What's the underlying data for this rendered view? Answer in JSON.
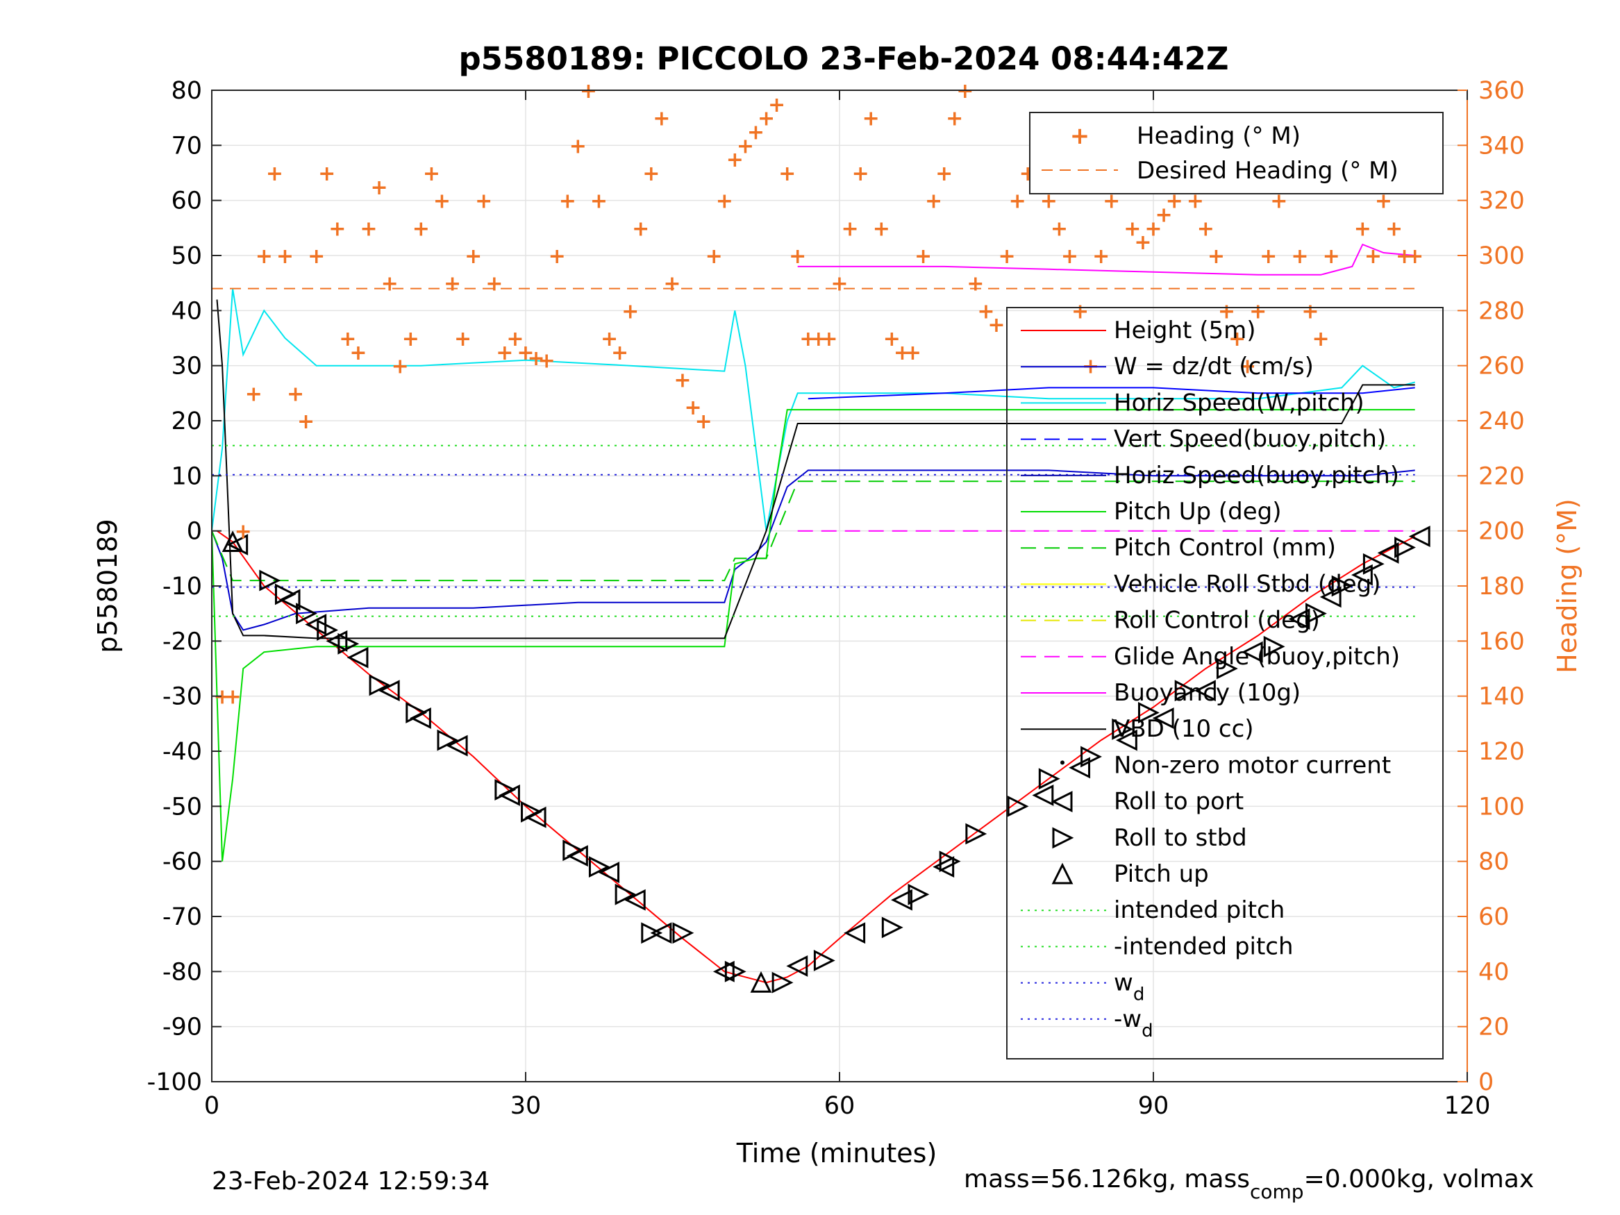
{
  "chart_data": {
    "type": "line",
    "title": "p5580189: PICCOLO 23-Feb-2024 08:44:42Z",
    "xlabel": "Time (minutes)",
    "ylabel": "p5580189",
    "y2label": "Heading (°M)",
    "xlim": [
      0,
      120
    ],
    "ylim": [
      -100,
      80
    ],
    "y2lim": [
      0,
      360
    ],
    "xticks": [
      "0",
      "30",
      "60",
      "90",
      "120"
    ],
    "yticks": [
      "-100",
      "-90",
      "-80",
      "-70",
      "-60",
      "-50",
      "-40",
      "-30",
      "-20",
      "-10",
      "0",
      "10",
      "20",
      "30",
      "40",
      "50",
      "60",
      "70",
      "80"
    ],
    "y2ticks": [
      "0",
      "20",
      "40",
      "60",
      "80",
      "100",
      "120",
      "140",
      "160",
      "180",
      "200",
      "220",
      "240",
      "260",
      "280",
      "300",
      "320",
      "340",
      "360"
    ],
    "grid": true,
    "footer_left": "23-Feb-2024 12:59:34",
    "footer_right_parts": [
      "mass=56.126kg, mass",
      "comp",
      "=0.000kg, volmax"
    ],
    "legend_top": {
      "placement": "top-right",
      "entries": [
        "Heading (° M)",
        "Desired Heading (° M)"
      ]
    },
    "legend_main": {
      "placement": "right",
      "entries": [
        {
          "label": "Height (5m)"
        },
        {
          "label": "W = dz/dt (cm/s)"
        },
        {
          "label": "Horiz Speed(W,pitch)"
        },
        {
          "label": "Vert Speed(buoy,pitch)"
        },
        {
          "label": "Horiz Speed(buoy,pitch)"
        },
        {
          "label": "Pitch Up (deg)"
        },
        {
          "label": "Pitch Control (mm)"
        },
        {
          "label": "Vehicle Roll Stbd (deg)"
        },
        {
          "label": "Roll Control (deg)"
        },
        {
          "label": "Glide Angle (buoy,pitch)"
        },
        {
          "label": "Buoyancy (10g)"
        },
        {
          "label": "VBD (10 cc)"
        },
        {
          "label": "Non-zero motor current"
        },
        {
          "label": "Roll to port"
        },
        {
          "label": "Roll to stbd"
        },
        {
          "label": "Pitch up"
        },
        {
          "label": "intended pitch"
        },
        {
          "label": "-intended pitch"
        },
        {
          "label": "w",
          "sub": "d"
        },
        {
          "label": "-w",
          "sub": "d"
        }
      ]
    },
    "colors": {
      "height": "#ff0000",
      "w": "#0000cc",
      "horiz_speed_w": "#00e5ee",
      "vert_speed_buoy": "#0000ff",
      "horiz_speed_buoy": "#0000aa",
      "pitch_up": "#00dd00",
      "pitch_control": "#00cc00",
      "roll": "#ffff00",
      "roll_control": "#e6e600",
      "glide": "#ff00ff",
      "buoyancy": "#ff00ff",
      "vbd": "#000000",
      "heading": "#f07323",
      "intended": "#22dd22",
      "wd": "#2222dd"
    },
    "series": [
      {
        "name": "Height (5m)",
        "x": [
          0.5,
          2,
          5,
          10,
          15,
          20,
          25,
          30,
          35,
          40,
          45,
          49,
          51,
          53,
          55,
          57,
          60,
          65,
          70,
          75,
          80,
          85,
          90,
          95,
          100,
          105,
          110,
          115
        ],
        "y": [
          0,
          -2,
          -10,
          -18,
          -26,
          -33,
          -41,
          -50,
          -58,
          -66,
          -74,
          -80,
          -81,
          -82,
          -81,
          -79,
          -74,
          -66,
          -59,
          -52,
          -45,
          -38,
          -32,
          -25,
          -19,
          -12,
          -6,
          -1
        ]
      },
      {
        "name": "W = dz/dt (cm/s)",
        "x": [
          0,
          1,
          2,
          3,
          5,
          8,
          15,
          25,
          35,
          45,
          49,
          50,
          52,
          53,
          55,
          57,
          60,
          70,
          80,
          90,
          100,
          110,
          115
        ],
        "y": [
          0,
          -5,
          -15,
          -18,
          -17,
          -15,
          -14,
          -14,
          -13,
          -13,
          -13,
          -7,
          -4,
          -2,
          8,
          11,
          11,
          11,
          11,
          10,
          10,
          10,
          11
        ]
      },
      {
        "name": "Horiz Speed(W,pitch)",
        "x": [
          0,
          1,
          2,
          3,
          5,
          7,
          10,
          20,
          30,
          40,
          49,
          50,
          51,
          52,
          53,
          55,
          56,
          60,
          70,
          80,
          90,
          100,
          108,
          110,
          113,
          115
        ],
        "y": [
          0,
          15,
          44,
          32,
          40,
          35,
          30,
          30,
          31,
          30,
          29,
          40,
          30,
          15,
          0,
          20,
          25,
          25,
          25,
          24,
          24,
          24,
          26,
          30,
          26,
          27
        ]
      },
      {
        "name": "Vert Speed(buoy,pitch)",
        "x": [
          57,
          70,
          80,
          90,
          100,
          110,
          115
        ],
        "y": [
          24,
          25,
          26,
          26,
          25,
          25,
          26
        ]
      },
      {
        "name": "Pitch Up (deg)",
        "x": [
          0,
          1,
          2,
          3,
          5,
          10,
          20,
          30,
          40,
          49,
          50,
          52,
          53,
          54,
          55,
          57,
          60,
          70,
          80,
          90,
          100,
          110,
          115
        ],
        "y": [
          0,
          -60,
          -45,
          -25,
          -22,
          -21,
          -21,
          -21,
          -21,
          -21,
          -6,
          -5,
          -5,
          10,
          22,
          22,
          22,
          22,
          22,
          22,
          22,
          22,
          22
        ]
      },
      {
        "name": "Pitch Control (mm)",
        "x": [
          0,
          2,
          49,
          50,
          53,
          56,
          70,
          80,
          90,
          100,
          115
        ],
        "y": [
          0,
          -9,
          -9,
          -5,
          -5,
          9,
          9,
          9,
          9,
          9,
          9
        ]
      },
      {
        "name": "Glide Angle (buoy,pitch)",
        "x": [
          56,
          115
        ],
        "y": [
          0,
          0
        ]
      },
      {
        "name": "Buoyancy (10g)",
        "x": [
          56,
          70,
          80,
          90,
          100,
          106,
          109,
          110,
          112,
          115
        ],
        "y": [
          48,
          48,
          47.5,
          47,
          46.5,
          46.5,
          48,
          52,
          50.5,
          50
        ]
      },
      {
        "name": "VBD (10 cc)",
        "x": [
          0.5,
          1,
          2,
          3,
          5,
          10,
          20,
          30,
          40,
          49,
          53,
          56,
          70,
          80,
          90,
          100,
          108,
          110,
          115
        ],
        "y": [
          42,
          30,
          -15,
          -19,
          -19,
          -19.5,
          -19.5,
          -19.5,
          -19.5,
          -19.5,
          0,
          19.5,
          19.5,
          19.5,
          19.5,
          19.5,
          19.5,
          26.5,
          26.5
        ]
      },
      {
        "name": "intended pitch",
        "x": [
          0,
          115
        ],
        "y": [
          15.5,
          15.5
        ]
      },
      {
        "name": "-intended pitch",
        "x": [
          0,
          115
        ],
        "y": [
          -15.5,
          -15.5
        ]
      },
      {
        "name": "w_d",
        "x": [
          0,
          115
        ],
        "y": [
          10.2,
          10.2
        ]
      },
      {
        "name": "-w_d",
        "x": [
          0,
          115
        ],
        "y": [
          -10.2,
          -10.2
        ]
      },
      {
        "name": "Desired Heading (° M)",
        "axis": "right",
        "x": [
          0,
          115
        ],
        "y": [
          288,
          288
        ]
      },
      {
        "name": "Heading (° M)",
        "axis": "right",
        "type": "scatter",
        "x": [
          1,
          2,
          3,
          4,
          5,
          6,
          7,
          8,
          9,
          10,
          11,
          12,
          13,
          14,
          15,
          16,
          17,
          18,
          19,
          20,
          21,
          22,
          23,
          24,
          25,
          26,
          27,
          28,
          29,
          30,
          31,
          32,
          33,
          34,
          35,
          36,
          37,
          38,
          39,
          40,
          41,
          42,
          43,
          44,
          45,
          46,
          47,
          48,
          49,
          50,
          51,
          52,
          53,
          54,
          55,
          56,
          57,
          58,
          59,
          60,
          61,
          62,
          63,
          64,
          65,
          66,
          67,
          68,
          69,
          70,
          71,
          72,
          73,
          74,
          75,
          76,
          77,
          78,
          79,
          80,
          81,
          82,
          83,
          84,
          85,
          86,
          87,
          88,
          89,
          90,
          91,
          92,
          93,
          94,
          95,
          96,
          97,
          98,
          99,
          100,
          101,
          102,
          103,
          104,
          105,
          106,
          107,
          108,
          109,
          110,
          111,
          112,
          113,
          114,
          115
        ],
        "y": [
          140,
          140,
          200,
          250,
          300,
          330,
          300,
          250,
          240,
          300,
          330,
          310,
          270,
          265,
          310,
          325,
          290,
          260,
          270,
          310,
          330,
          320,
          290,
          270,
          300,
          320,
          290,
          265,
          270,
          265,
          263,
          262,
          300,
          320,
          340,
          360,
          320,
          270,
          265,
          280,
          310,
          330,
          350,
          290,
          255,
          245,
          240,
          300,
          320,
          335,
          340,
          345,
          350,
          355,
          330,
          300,
          270,
          270,
          270,
          290,
          310,
          330,
          350,
          310,
          270,
          265,
          265,
          300,
          320,
          330,
          350,
          360,
          290,
          280,
          275,
          300,
          320,
          330,
          340,
          320,
          310,
          300,
          280,
          260,
          300,
          320,
          330,
          310,
          305,
          310,
          315,
          320,
          325,
          320,
          310,
          300,
          280,
          270,
          260,
          280,
          300,
          320,
          345,
          300,
          280,
          270,
          300,
          340,
          345,
          310,
          300,
          320,
          310,
          300,
          300
        ]
      }
    ],
    "markers": {
      "pitch_up": {
        "x": [
          2,
          52.5
        ],
        "y": [
          -2,
          -82
        ]
      },
      "roll_to_stbd": {
        "x": [
          5.5,
          7,
          9,
          11,
          13,
          16,
          19.5,
          22.5,
          28,
          30.5,
          34.5,
          37,
          39.5,
          42,
          45,
          50,
          54.5,
          58.5,
          65,
          67.5,
          70.5,
          73,
          77,
          80,
          84,
          87,
          89.5,
          93,
          97,
          101.5,
          105.5,
          108,
          111,
          114
        ],
        "y": [
          -9,
          -11.5,
          -15,
          -18,
          -20.5,
          -28,
          -33,
          -38,
          -47,
          -51,
          -58,
          -61,
          -66,
          -73,
          -73,
          -80,
          -82,
          -78,
          -72,
          -66,
          -60,
          -55,
          -50,
          -45,
          -41,
          -36,
          -33,
          -29,
          -25,
          -21,
          -15,
          -10,
          -6,
          -3
        ]
      },
      "roll_to_port": {
        "x": [
          2.5,
          7.5,
          10,
          12,
          14,
          17,
          20,
          23.5,
          28.5,
          31,
          35,
          38,
          40.5,
          43,
          49,
          56,
          61.5,
          66,
          70,
          79.5,
          83,
          87.5,
          91,
          95,
          99.5,
          104,
          107,
          110,
          112.5,
          115.5
        ],
        "y": [
          -2.5,
          -12.5,
          -17,
          -20,
          -23,
          -29,
          -34,
          -39,
          -48,
          -52,
          -59,
          -62,
          -67,
          -73,
          -80,
          -79,
          -73,
          -67,
          -61,
          -48,
          -43,
          -38,
          -34,
          -29,
          -22,
          -16,
          -12,
          -8,
          -4,
          -1
        ]
      }
    }
  }
}
